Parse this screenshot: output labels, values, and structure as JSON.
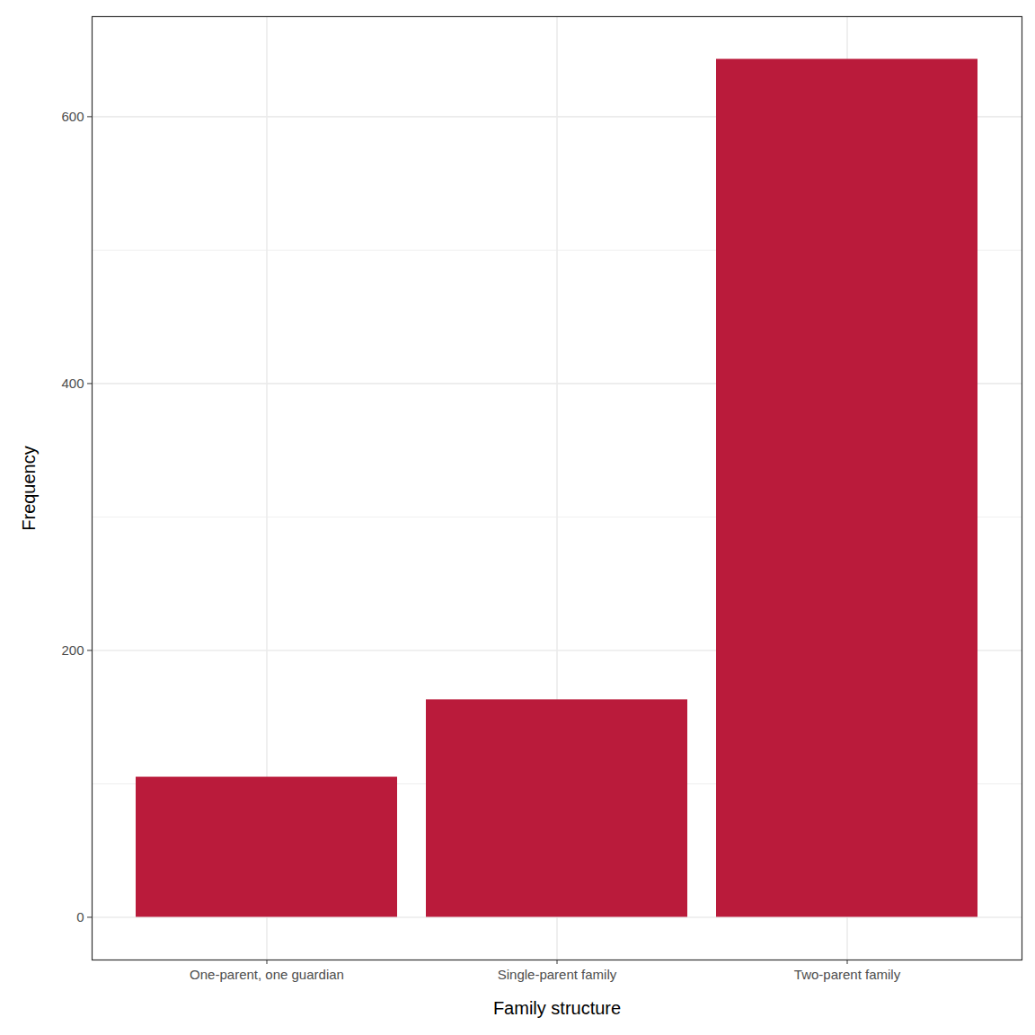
{
  "chart_data": {
    "type": "bar",
    "x_label": "Family structure",
    "y_label": "Frequency",
    "categories": [
      "One-parent, one guardian",
      "Single-parent family",
      "Two-parent family"
    ],
    "values": [
      105,
      163,
      643
    ],
    "color": "#ba1b3b",
    "ylim": [
      -32,
      675
    ],
    "yticks": [
      0,
      200,
      400,
      600
    ],
    "grid": true
  }
}
